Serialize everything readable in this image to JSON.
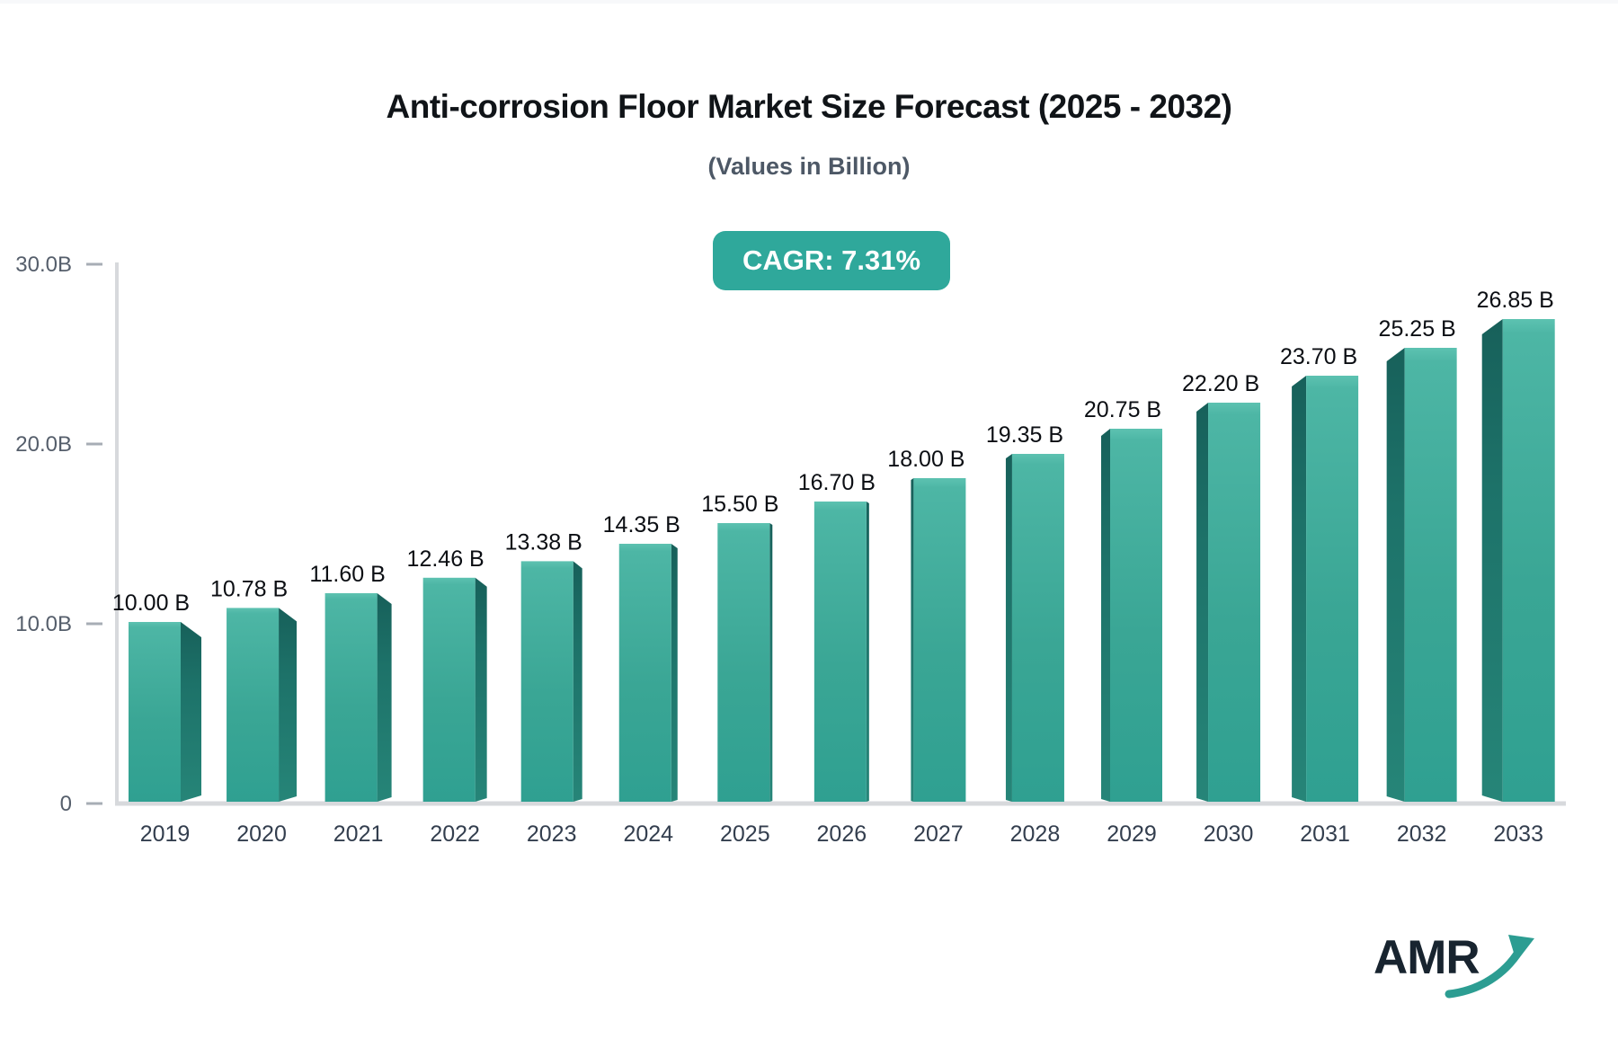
{
  "header": {
    "title": "Anti-corrosion Floor Market Size Forecast (2025 - 2032)",
    "subtitle": "(Values in Billion)"
  },
  "badge": {
    "label": "CAGR: 7.31%",
    "color": "#2fa89b"
  },
  "logo": {
    "text": "AMR",
    "text_color": "#18242f",
    "arrow_color": "#2c9d92"
  },
  "chart_data": {
    "type": "bar",
    "title": "Anti-corrosion Floor Market Size Forecast (2025 - 2032)",
    "subtitle": "(Values in Billion)",
    "cagr_label": "CAGR: 7.31%",
    "categories": [
      "2019",
      "2020",
      "2021",
      "2022",
      "2023",
      "2024",
      "2025",
      "2026",
      "2027",
      "2028",
      "2029",
      "2030",
      "2031",
      "2032",
      "2033"
    ],
    "values": [
      10.0,
      10.78,
      11.6,
      12.46,
      13.38,
      14.35,
      15.5,
      16.7,
      18.0,
      19.35,
      20.75,
      22.2,
      23.7,
      25.25,
      26.85
    ],
    "value_labels": [
      "10.00 B",
      "10.78 B",
      "11.60 B",
      "12.46 B",
      "13.38 B",
      "14.35 B",
      "15.50 B",
      "16.70 B",
      "18.00 B",
      "19.35 B",
      "20.75 B",
      "22.20 B",
      "23.70 B",
      "25.25 B",
      "26.85 B"
    ],
    "unit": "Billion",
    "xlabel": "",
    "ylabel": "",
    "ylim": [
      0,
      30
    ],
    "ytick_values": [
      0,
      10,
      20,
      30
    ],
    "ytick_labels": [
      "0",
      "10.0B",
      "20.0B",
      "30.0B"
    ],
    "grid": false,
    "legend": false,
    "bar_face_top_color": "#52bbaa",
    "bar_face_bottom_color": "#2fa091",
    "bar_side_top_color": "#17605a",
    "bar_side_bottom_color": "#268578",
    "axis_line_color": "#d7d9dc",
    "tick_dash_color": "#a7adb5",
    "ytick_text_color": "#555e6b",
    "xtick_text_color": "#333e4e",
    "value_text_color": "#0b0e13"
  }
}
